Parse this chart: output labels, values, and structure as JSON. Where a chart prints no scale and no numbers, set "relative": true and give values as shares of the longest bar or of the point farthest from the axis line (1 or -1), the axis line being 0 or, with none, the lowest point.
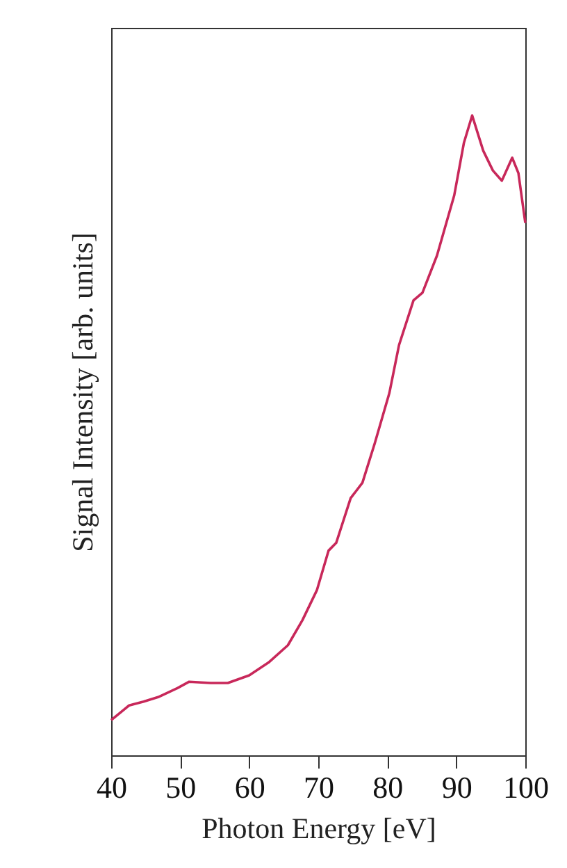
{
  "chart_data": {
    "type": "line",
    "xlabel": "Photon Energy [eV]",
    "ylabel": "Signal Intensity [arb. units]",
    "relative": true,
    "x": [
      40,
      42.6,
      44.7,
      46.8,
      49.6,
      51.3,
      54.4,
      56.9,
      60,
      62.8,
      65.6,
      67.7,
      69.8,
      71.5,
      72.6,
      74.7,
      76.4,
      78.2,
      80.3,
      81.7,
      83.8,
      85.1,
      87.2,
      89.7,
      91.1,
      92.3,
      93.9,
      95.3,
      96.6,
      98.1,
      99,
      100
    ],
    "series": [
      {
        "color": "#c8285a",
        "values": [
          0.055,
          0.078,
          0.084,
          0.091,
          0.105,
          0.115,
          0.113,
          0.113,
          0.125,
          0.145,
          0.172,
          0.211,
          0.258,
          0.32,
          0.332,
          0.402,
          0.426,
          0.488,
          0.566,
          0.641,
          0.711,
          0.723,
          0.781,
          0.875,
          0.957,
          1,
          0.945,
          0.914,
          0.898,
          0.934,
          0.91,
          0.832
        ]
      }
    ],
    "xlim": [
      40,
      100
    ],
    "xticks": [
      40,
      50,
      60,
      70,
      80,
      90,
      100
    ],
    "marker": "none",
    "line_style": "solid"
  }
}
